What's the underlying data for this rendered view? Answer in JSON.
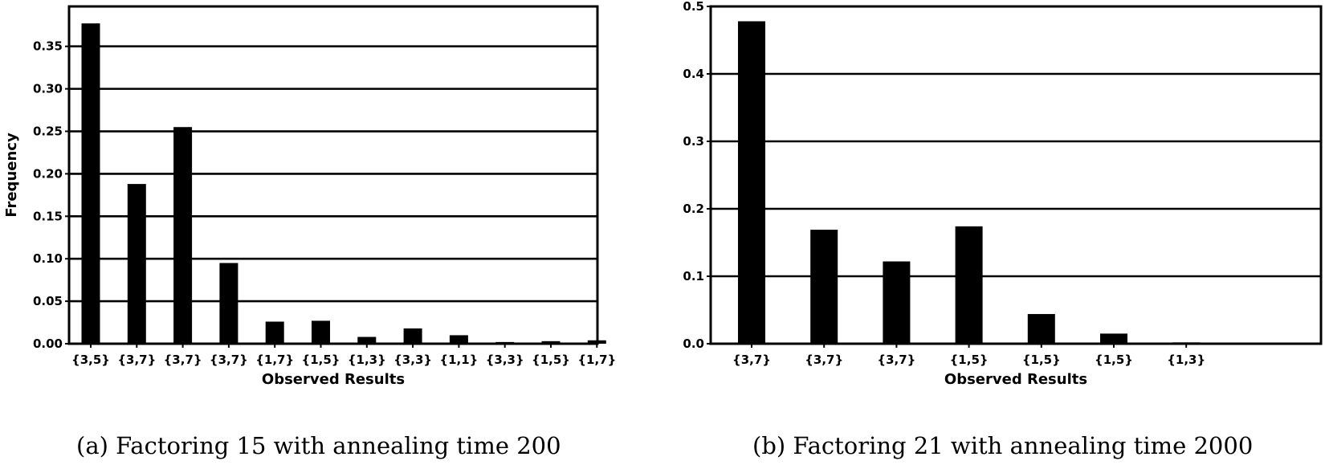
{
  "chart_data": [
    {
      "type": "bar",
      "categories": [
        "{3,5}",
        "{3,7}",
        "{3,7}",
        "{3,7}",
        "{1,7}",
        "{1,5}",
        "{1,3}",
        "{3,3}",
        "{1,1}",
        "{3,3}",
        "{1,5}",
        "{1,7}"
      ],
      "values": [
        0.377,
        0.188,
        0.255,
        0.095,
        0.026,
        0.027,
        0.008,
        0.018,
        0.01,
        0.002,
        0.003,
        0.004
      ],
      "xlabel": "Observed Results",
      "ylabel": "Frequency",
      "ylim": [
        0,
        0.397
      ],
      "yticks": [
        "0.00",
        "0.05",
        "0.10",
        "0.15",
        "0.20",
        "0.25",
        "0.30",
        "0.35"
      ],
      "ytick_values": [
        0,
        0.05,
        0.1,
        0.15,
        0.2,
        0.25,
        0.3,
        0.35
      ],
      "grid": "horizontal",
      "bar_color": "#000000",
      "caption": "(a) Factoring 15 with annealing time 200"
    },
    {
      "type": "bar",
      "categories": [
        "{3,7}",
        "{3,7}",
        "{3,7}",
        "{1,5}",
        "{1,5}",
        "{1,5}",
        "{1,3}"
      ],
      "values": [
        0.478,
        0.169,
        0.122,
        0.174,
        0.044,
        0.015,
        0.002
      ],
      "xlabel": "Observed Results",
      "ylabel": "Frequency",
      "ylim": [
        0,
        0.5
      ],
      "yticks": [
        "0.0",
        "0.1",
        "0.2",
        "0.3",
        "0.4",
        "0.5"
      ],
      "ytick_values": [
        0,
        0.1,
        0.2,
        0.3,
        0.4,
        0.5
      ],
      "grid": "horizontal",
      "bar_color": "#000000",
      "caption": "(b) Factoring 21 with annealing time 2000"
    }
  ]
}
